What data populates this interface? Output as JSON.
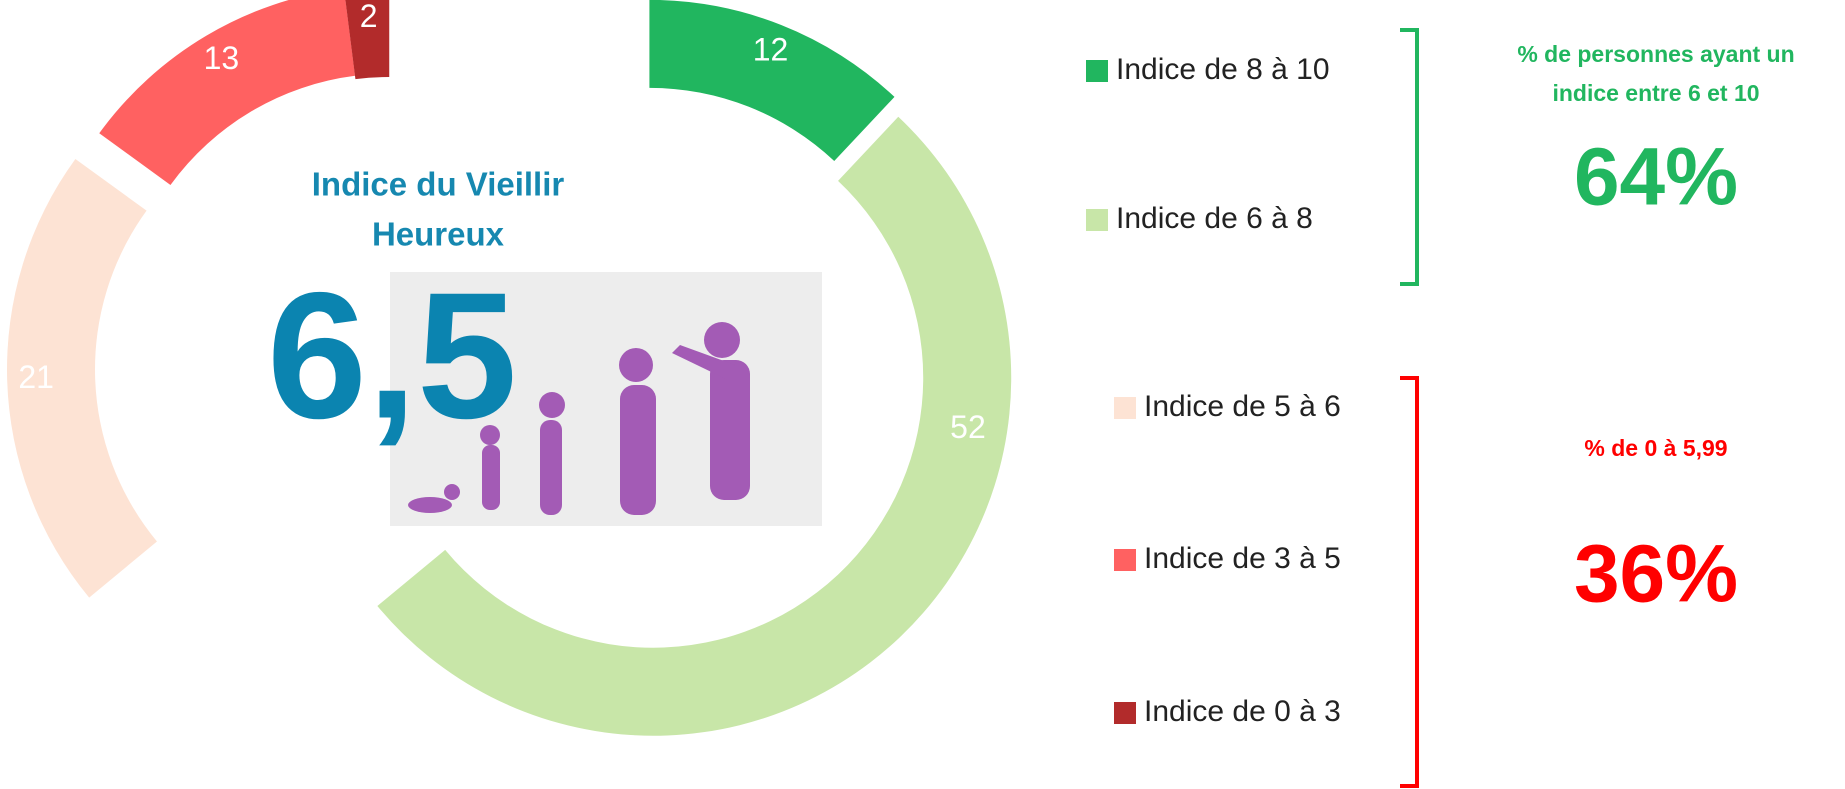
{
  "chart_data": {
    "type": "donut",
    "categories": [
      "Indice de 8 à 10",
      "Indice de 6 à 8",
      "Indice de 5 à 6",
      "Indice de 3 à 5",
      "Indice de 0 à 3"
    ],
    "values": [
      12,
      52,
      21,
      13,
      2
    ],
    "colors": [
      "#21b65f",
      "#c8e6a8",
      "#fde3d4",
      "#ff6161",
      "#b22b2b"
    ],
    "center_title": [
      "Indice du Vieillir",
      "Heureux"
    ],
    "center_value": "6,5",
    "groups": [
      {
        "label": [
          "% de personnes ayant un",
          "indice entre 6 et 10"
        ],
        "value": 64,
        "value_label": "64%",
        "color": "#21b65f"
      },
      {
        "label": [
          "% de 0 à 5,99"
        ],
        "value": 36,
        "value_label": "36%",
        "color": "#ff0000"
      }
    ]
  }
}
